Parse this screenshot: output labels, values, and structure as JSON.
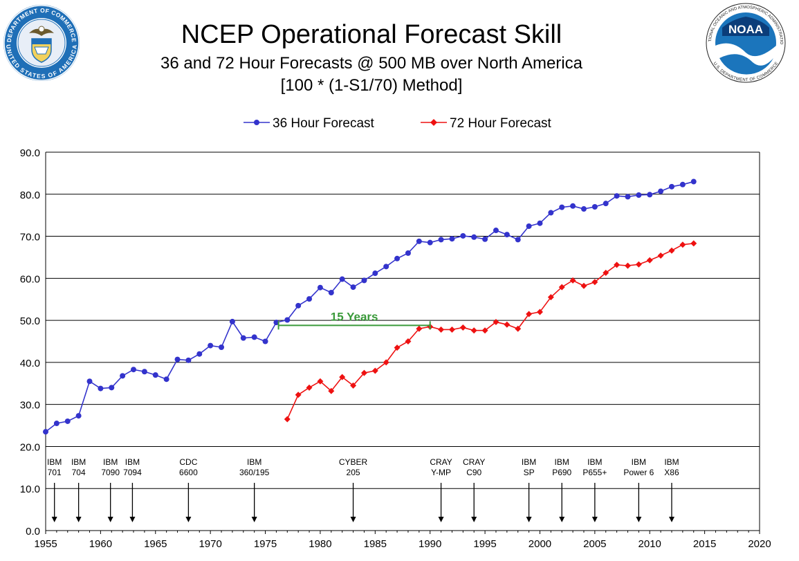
{
  "header": {
    "title": "NCEP Operational Forecast Skill",
    "subtitle": "36 and 72 Hour Forecasts @ 500 MB over North America",
    "method": "[100 * (1-S1/70) Method]"
  },
  "logos": {
    "left": {
      "ring_text": "DEPARTMENT OF COMMERCE · UNITED STATES OF AMERICA",
      "color": "#1f6fb7"
    },
    "right": {
      "center_text": "NOAA",
      "ring_text": "NATIONAL OCEANIC AND ATMOSPHERIC ADMINISTRATION · U.S. DEPARTMENT OF COMMERCE",
      "color": "#1b75bc"
    }
  },
  "chart_data": {
    "type": "line",
    "xlim": [
      1955,
      2020
    ],
    "ylim": [
      0,
      90
    ],
    "x_ticks": [
      "1955",
      "1960",
      "1965",
      "1970",
      "1975",
      "1980",
      "1985",
      "1990",
      "1995",
      "2000",
      "2005",
      "2010",
      "2015",
      "2020"
    ],
    "y_ticks": [
      "0.0",
      "10.0",
      "20.0",
      "30.0",
      "40.0",
      "50.0",
      "60.0",
      "70.0",
      "80.0",
      "90.0"
    ],
    "grid": "horizontal",
    "legend_position": "top-center",
    "series": [
      {
        "name": "36 Hour Forecast",
        "color": "#3333cc",
        "marker": "circle",
        "x": [
          1955,
          1956,
          1957,
          1958,
          1959,
          1960,
          1961,
          1962,
          1963,
          1964,
          1965,
          1966,
          1967,
          1968,
          1969,
          1970,
          1971,
          1972,
          1973,
          1974,
          1975,
          1976,
          1977,
          1978,
          1979,
          1980,
          1981,
          1982,
          1983,
          1984,
          1985,
          1986,
          1987,
          1988,
          1989,
          1990,
          1991,
          1992,
          1993,
          1994,
          1995,
          1996,
          1997,
          1998,
          1999,
          2000,
          2001,
          2002,
          2003,
          2004,
          2005,
          2006,
          2007,
          2008,
          2009,
          2010,
          2011,
          2012,
          2013,
          2014
        ],
        "values": [
          23.5,
          25.5,
          26.0,
          27.3,
          35.5,
          33.8,
          34.0,
          36.8,
          38.3,
          37.8,
          37.0,
          36.0,
          40.7,
          40.5,
          42.0,
          44.0,
          43.6,
          49.7,
          45.8,
          46.0,
          45.0,
          49.5,
          50.1,
          53.5,
          55.1,
          57.8,
          56.6,
          59.8,
          57.9,
          59.5,
          61.2,
          62.8,
          64.7,
          66.0,
          68.8,
          68.5,
          69.2,
          69.4,
          70.1,
          69.8,
          69.3,
          71.4,
          70.4,
          69.2,
          72.4,
          73.1,
          75.6,
          76.9,
          77.2,
          76.5,
          77.0,
          77.8,
          79.6,
          79.4,
          79.8,
          79.9,
          80.7,
          81.8,
          82.3,
          83.0
        ]
      },
      {
        "name": "72 Hour Forecast",
        "color": "#ee1111",
        "marker": "diamond",
        "x": [
          1977,
          1978,
          1979,
          1980,
          1981,
          1982,
          1983,
          1984,
          1985,
          1986,
          1987,
          1988,
          1989,
          1990,
          1991,
          1992,
          1993,
          1994,
          1995,
          1996,
          1997,
          1998,
          1999,
          2000,
          2001,
          2002,
          2003,
          2004,
          2005,
          2006,
          2007,
          2008,
          2009,
          2010,
          2011,
          2012,
          2013,
          2014
        ],
        "values": [
          26.5,
          32.3,
          34.0,
          35.5,
          33.2,
          36.5,
          34.5,
          37.5,
          38.0,
          40.0,
          43.5,
          45.0,
          48.0,
          48.5,
          47.8,
          47.8,
          48.3,
          47.6,
          47.6,
          49.6,
          49.0,
          48.0,
          51.5,
          52.0,
          55.5,
          57.9,
          59.5,
          58.2,
          59.1,
          61.3,
          63.2,
          63.0,
          63.3,
          64.3,
          65.4,
          66.6,
          68.0,
          68.3
        ]
      }
    ],
    "annotations": [
      {
        "text": "15 Years",
        "x_start": 1976.2,
        "x_end": 1990.0,
        "y": 49.3,
        "color": "#3a9a3a"
      }
    ],
    "computers": [
      {
        "label": [
          "IBM",
          "701"
        ],
        "year": 1955.8
      },
      {
        "label": [
          "IBM",
          "704"
        ],
        "year": 1958
      },
      {
        "label": [
          "IBM",
          "7090"
        ],
        "year": 1960.9
      },
      {
        "label": [
          "IBM",
          "7094"
        ],
        "year": 1962.9
      },
      {
        "label": [
          "CDC",
          "6600"
        ],
        "year": 1968
      },
      {
        "label": [
          "IBM",
          "360/195"
        ],
        "year": 1974
      },
      {
        "label": [
          "CYBER",
          "205"
        ],
        "year": 1983
      },
      {
        "label": [
          "CRAY",
          "Y-MP"
        ],
        "year": 1991
      },
      {
        "label": [
          "CRAY",
          "C90"
        ],
        "year": 1994
      },
      {
        "label": [
          "IBM",
          "SP"
        ],
        "year": 1999
      },
      {
        "label": [
          "IBM",
          "P690"
        ],
        "year": 2002
      },
      {
        "label": [
          "IBM",
          "P655+"
        ],
        "year": 2005
      },
      {
        "label": [
          "IBM",
          "Power 6"
        ],
        "year": 2009
      },
      {
        "label": [
          "IBM",
          "X86"
        ],
        "year": 2012
      }
    ]
  }
}
